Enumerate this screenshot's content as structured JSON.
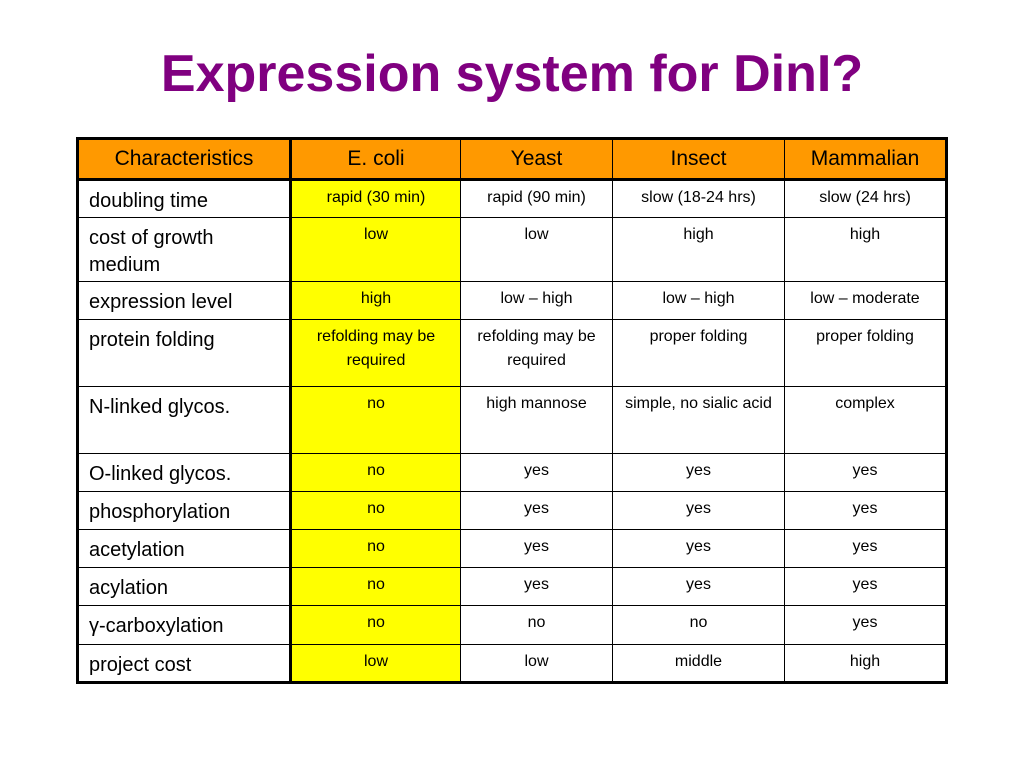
{
  "title": "Expression system for DinI?",
  "table": {
    "headers": [
      "Characteristics",
      "E. coli",
      "Yeast",
      "Insect",
      "Mammalian"
    ],
    "rows": [
      {
        "label": "doubling time",
        "ecoli": "rapid (30 min)",
        "yeast": "rapid (90 min)",
        "insect": "slow (18-24 hrs)",
        "mammalian": "slow (24 hrs)"
      },
      {
        "label": "cost of growth medium",
        "ecoli": "low",
        "yeast": "low",
        "insect": "high",
        "mammalian": "high"
      },
      {
        "label": "expression level",
        "ecoli": "high",
        "yeast": "low – high",
        "insect": "low – high",
        "mammalian": "low – moderate"
      },
      {
        "label": "protein folding",
        "ecoli": "refolding may be required",
        "yeast": "refolding may be required",
        "insect": "proper folding",
        "mammalian": "proper folding"
      },
      {
        "label": "N-linked glycos.",
        "ecoli": "no",
        "yeast": "high mannose",
        "insect": "simple, no sialic acid",
        "mammalian": "complex"
      },
      {
        "label": "O-linked glycos.",
        "ecoli": "no",
        "yeast": "yes",
        "insect": "yes",
        "mammalian": "yes"
      },
      {
        "label": "phosphorylation",
        "ecoli": "no",
        "yeast": "yes",
        "insect": "yes",
        "mammalian": "yes"
      },
      {
        "label": "acetylation",
        "ecoli": "no",
        "yeast": "yes",
        "insect": "yes",
        "mammalian": "yes"
      },
      {
        "label": "acylation",
        "ecoli": "no",
        "yeast": "yes",
        "insect": "yes",
        "mammalian": "yes"
      },
      {
        "label": "γ-carboxylation",
        "ecoli": "no",
        "yeast": "no",
        "insect": "no",
        "mammalian": "yes"
      },
      {
        "label": "project cost",
        "ecoli": "low",
        "yeast": "low",
        "insect": "middle",
        "mammalian": "high"
      }
    ]
  },
  "colors": {
    "title": "#800080",
    "header_background": "#ff9900",
    "ecoli_column_background": "#ffff00",
    "background": "#ffffff"
  }
}
